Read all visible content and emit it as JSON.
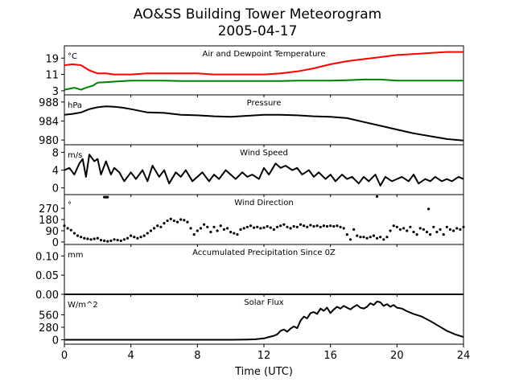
{
  "figure": {
    "title": "AO&SS Building Tower Meteorogram",
    "subtitle": "2005-04-17",
    "xlabel": "Time (UTC)",
    "colors": {
      "temperature": "#ff0000",
      "dewpoint": "#008000",
      "default": "#000000"
    }
  },
  "chart_data": [
    {
      "type": "line",
      "panel": "temperature",
      "title": "Air and Dewpoint Temperature",
      "unit_label": "°C",
      "xlim": [
        0,
        24
      ],
      "ylim": [
        1,
        25
      ],
      "yticks": [
        3,
        11,
        19
      ],
      "x_ticks": [
        0,
        4,
        8,
        12,
        16,
        20,
        24
      ],
      "series": [
        {
          "color": "#ff0000",
          "x": [
            0,
            0.5,
            1,
            1.5,
            2,
            2.5,
            3,
            4,
            5,
            6,
            7,
            8,
            9,
            10,
            11,
            12,
            13,
            14,
            15,
            16,
            17,
            17.5,
            18,
            18.5,
            19,
            20,
            21,
            22,
            23,
            24
          ],
          "values": [
            15.5,
            16,
            15.5,
            13,
            11.5,
            11.5,
            11,
            11,
            11.5,
            11.5,
            11.5,
            11.5,
            11,
            11,
            11,
            11,
            11.5,
            12.5,
            14,
            16,
            17.5,
            18,
            18.5,
            19,
            19.5,
            20.5,
            21,
            21.5,
            22,
            22
          ]
        },
        {
          "color": "#008000",
          "x": [
            0,
            0.3,
            0.6,
            1,
            1.3,
            1.7,
            2,
            3,
            4,
            5,
            6,
            7,
            8,
            9,
            10,
            11,
            12,
            13,
            14,
            15,
            16,
            17,
            18,
            19,
            20,
            21,
            22,
            23,
            24
          ],
          "values": [
            3.5,
            4,
            4.5,
            3.5,
            4.5,
            5.5,
            7,
            7.5,
            8,
            8,
            8,
            7.8,
            7.8,
            7.8,
            7.8,
            7.8,
            7.8,
            7.8,
            8,
            8,
            8,
            8.2,
            8.5,
            8.5,
            8,
            8,
            8,
            8,
            8
          ]
        }
      ]
    },
    {
      "type": "line",
      "panel": "pressure",
      "title": "Pressure",
      "unit_label": "hPa",
      "xlim": [
        0,
        24
      ],
      "ylim": [
        979,
        989.5
      ],
      "yticks": [
        980,
        984,
        988
      ],
      "series": [
        {
          "color": "#000000",
          "x": [
            0,
            0.5,
            1,
            1.5,
            2,
            2.5,
            3,
            3.5,
            4,
            5,
            6,
            7,
            8,
            9,
            10,
            11,
            12,
            13,
            14,
            15,
            16,
            17,
            18,
            19,
            20,
            21,
            22,
            23,
            24
          ],
          "values": [
            985.3,
            985.5,
            985.8,
            986.5,
            986.9,
            987.1,
            987,
            986.8,
            986.5,
            985.8,
            985.7,
            985.3,
            985.2,
            985,
            984.9,
            985.1,
            985.3,
            985.3,
            985.2,
            985.0,
            984.9,
            984.6,
            983.8,
            983,
            982.2,
            981.4,
            980.8,
            980.2,
            979.9
          ]
        }
      ]
    },
    {
      "type": "line",
      "panel": "wind_speed",
      "title": "Wind Speed",
      "unit_label": "m/s",
      "xlim": [
        0,
        24
      ],
      "ylim": [
        -1.5,
        9.7
      ],
      "yticks": [
        0,
        4,
        8
      ],
      "series": [
        {
          "color": "#000000",
          "x": [
            0,
            0.3,
            0.6,
            0.9,
            1.1,
            1.3,
            1.5,
            1.8,
            2,
            2.2,
            2.5,
            2.8,
            3,
            3.3,
            3.6,
            4,
            4.3,
            4.7,
            5,
            5.3,
            5.7,
            6,
            6.3,
            6.7,
            7,
            7.3,
            7.7,
            8,
            8.3,
            8.7,
            9,
            9.3,
            9.7,
            10,
            10.3,
            10.7,
            11,
            11.3,
            11.7,
            12,
            12.3,
            12.7,
            13,
            13.3,
            13.7,
            14,
            14.3,
            14.7,
            15,
            15.3,
            15.7,
            16,
            16.3,
            16.7,
            17,
            17.3,
            17.7,
            18,
            18.3,
            18.7,
            19,
            19.3,
            19.7,
            20,
            20.3,
            20.7,
            21,
            21.3,
            21.7,
            22,
            22.3,
            22.7,
            23,
            23.3,
            23.7,
            24
          ],
          "values": [
            4,
            4.5,
            3,
            5.5,
            6.5,
            2.5,
            7.5,
            6,
            6.5,
            3,
            6,
            3,
            4.5,
            3.5,
            1.5,
            3.5,
            2,
            4,
            1.5,
            5,
            2.5,
            4,
            1,
            3.5,
            2.5,
            4,
            1.5,
            2.5,
            3.5,
            1.5,
            3,
            2,
            4,
            3,
            2,
            3.5,
            2.5,
            3,
            2,
            4.5,
            3,
            5.5,
            4.5,
            5,
            4,
            4.5,
            3,
            4,
            2.5,
            3.5,
            2,
            3,
            1.5,
            3,
            2,
            2.5,
            1,
            2.5,
            1.5,
            3,
            0.5,
            2.5,
            1.5,
            2,
            2.5,
            1.5,
            3,
            1,
            2,
            1.5,
            2.5,
            1.5,
            2,
            1.5,
            2.5,
            2
          ]
        }
      ]
    },
    {
      "type": "scatter",
      "panel": "wind_direction",
      "title": "Wind Direction",
      "unit_label": "°",
      "xlim": [
        0,
        24
      ],
      "ylim": [
        -20,
        380
      ],
      "yticks": [
        0,
        90,
        180,
        270
      ],
      "series": [
        {
          "color": "#000000",
          "x": [
            0,
            0.2,
            0.4,
            0.6,
            0.8,
            1,
            1.2,
            1.4,
            1.6,
            1.8,
            2,
            2.2,
            2.4,
            2.6,
            2.8,
            3,
            3.2,
            3.4,
            3.6,
            3.8,
            4,
            4.2,
            4.4,
            4.6,
            4.8,
            5,
            5.2,
            5.4,
            5.6,
            5.8,
            6,
            6.2,
            6.4,
            6.6,
            6.8,
            7,
            7.2,
            7.4,
            7.6,
            7.8,
            8,
            8.2,
            8.4,
            8.6,
            8.8,
            9,
            9.2,
            9.4,
            9.6,
            9.8,
            10,
            10.2,
            10.4,
            10.6,
            10.8,
            11,
            11.2,
            11.4,
            11.6,
            11.8,
            12,
            12.2,
            12.4,
            12.6,
            12.8,
            13,
            13.2,
            13.4,
            13.6,
            13.8,
            14,
            14.2,
            14.4,
            14.6,
            14.8,
            15,
            15.2,
            15.4,
            15.6,
            15.8,
            16,
            16.2,
            16.4,
            16.6,
            16.8,
            17,
            17.2,
            17.4,
            17.6,
            17.8,
            18,
            18.2,
            18.4,
            18.6,
            18.8,
            19,
            19.2,
            19.4,
            19.6,
            19.8,
            20,
            20.2,
            20.4,
            20.6,
            20.8,
            21,
            21.2,
            21.4,
            21.6,
            21.8,
            22,
            22.2,
            22.4,
            22.6,
            22.8,
            23,
            23.2,
            23.4,
            23.6,
            23.8,
            24,
            2.4,
            2.5,
            2.6,
            18.8,
            21.9
          ],
          "values": [
            130,
            110,
            95,
            70,
            50,
            40,
            30,
            25,
            20,
            25,
            30,
            15,
            10,
            5,
            10,
            20,
            15,
            10,
            20,
            30,
            50,
            40,
            30,
            40,
            50,
            70,
            90,
            110,
            130,
            120,
            150,
            170,
            185,
            170,
            160,
            180,
            175,
            160,
            110,
            60,
            90,
            110,
            140,
            120,
            80,
            120,
            90,
            130,
            100,
            110,
            80,
            70,
            60,
            100,
            110,
            120,
            130,
            115,
            120,
            110,
            115,
            125,
            115,
            100,
            120,
            130,
            140,
            120,
            110,
            125,
            120,
            140,
            130,
            120,
            135,
            125,
            130,
            120,
            130,
            125,
            130,
            125,
            130,
            120,
            110,
            60,
            20,
            100,
            50,
            40,
            40,
            30,
            40,
            50,
            30,
            40,
            20,
            40,
            90,
            130,
            120,
            100,
            110,
            90,
            120,
            80,
            60,
            110,
            100,
            80,
            60,
            120,
            80,
            100,
            60,
            120,
            100,
            90,
            110,
            100,
            120,
            360,
            360,
            360,
            365,
            265
          ]
        }
      ]
    },
    {
      "type": "line",
      "panel": "precipitation",
      "title": "Accumulated Precipitation Since 0Z",
      "unit_label": "mm",
      "xlim": [
        0,
        24
      ],
      "ylim": [
        0,
        0.13
      ],
      "yticks": [
        0.0,
        0.05,
        0.1
      ],
      "ytick_labels": [
        "0.00",
        "0.05",
        "0.10"
      ],
      "series": [
        {
          "color": "#000000",
          "x": [
            0,
            24
          ],
          "values": [
            0,
            0
          ]
        }
      ]
    },
    {
      "type": "line",
      "panel": "solar_flux",
      "title": "Solar Flux",
      "unit_label": "W/m^2",
      "xlim": [
        0,
        24
      ],
      "ylim": [
        -100,
        1020
      ],
      "yticks": [
        0,
        280,
        560
      ],
      "series": [
        {
          "color": "#000000",
          "x": [
            0,
            5,
            10,
            11,
            11.5,
            12,
            12.3,
            12.6,
            12.8,
            13,
            13.2,
            13.4,
            13.6,
            13.8,
            14,
            14.2,
            14.4,
            14.6,
            14.8,
            15,
            15.2,
            15.4,
            15.6,
            15.8,
            16,
            16.2,
            16.4,
            16.6,
            16.8,
            17,
            17.2,
            17.4,
            17.6,
            17.8,
            18,
            18.2,
            18.4,
            18.6,
            18.8,
            19,
            19.2,
            19.4,
            19.6,
            19.8,
            20,
            20.3,
            20.6,
            21,
            21.5,
            22,
            22.5,
            23,
            23.5,
            24
          ],
          "values": [
            0,
            0,
            0,
            5,
            10,
            30,
            60,
            90,
            120,
            200,
            230,
            180,
            250,
            300,
            260,
            430,
            520,
            480,
            600,
            620,
            580,
            700,
            650,
            720,
            600,
            680,
            740,
            700,
            760,
            720,
            680,
            740,
            780,
            720,
            700,
            740,
            820,
            780,
            860,
            840,
            760,
            800,
            740,
            780,
            720,
            700,
            640,
            580,
            520,
            420,
            310,
            200,
            120,
            60
          ]
        }
      ]
    }
  ]
}
